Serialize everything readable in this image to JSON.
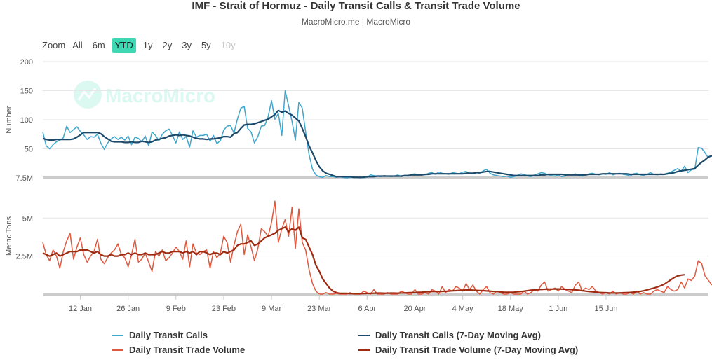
{
  "title": "IMF - Strait of Hormuz - Daily Transit Calls & Transit Trade Volume",
  "subtitle": "MacroMicro.me | MacroMicro",
  "watermark": "MacroMicro",
  "zoom": {
    "label": "Zoom",
    "buttons": [
      {
        "label": "All",
        "state": "normal"
      },
      {
        "label": "6m",
        "state": "normal"
      },
      {
        "label": "YTD",
        "state": "active"
      },
      {
        "label": "1y",
        "state": "normal"
      },
      {
        "label": "2y",
        "state": "normal"
      },
      {
        "label": "3y",
        "state": "normal"
      },
      {
        "label": "5y",
        "state": "normal"
      },
      {
        "label": "10y",
        "state": "disabled"
      }
    ]
  },
  "colors": {
    "calls": "#3fa6cd",
    "calls_ma": "#1c4a6a",
    "volume": "#e0593f",
    "volume_ma": "#9e2a10",
    "grid": "#e6e6e6",
    "watermark": "#3ed9b4"
  },
  "chart_data": [
    {
      "type": "line",
      "ylabel": "Number",
      "ylim": [
        0,
        200
      ],
      "yticks": [
        {
          "value": 50,
          "label": "50"
        },
        {
          "value": 100,
          "label": "100"
        },
        {
          "value": 150,
          "label": "150"
        },
        {
          "value": 200,
          "label": "200"
        }
      ],
      "baseline_label": "7.5M",
      "x_start": "2026-01-01",
      "series": [
        {
          "name": "Daily Transit Calls",
          "color_key": "calls",
          "values": [
            79,
            55,
            50,
            57,
            62,
            65,
            69,
            89,
            78,
            83,
            88,
            80,
            74,
            66,
            71,
            70,
            75,
            60,
            49,
            60,
            67,
            71,
            66,
            70,
            65,
            72,
            57,
            70,
            68,
            62,
            72,
            55,
            79,
            73,
            64,
            75,
            81,
            84,
            73,
            60,
            79,
            66,
            71,
            53,
            81,
            70,
            73,
            73,
            75,
            63,
            73,
            59,
            64,
            82,
            89,
            90,
            77,
            101,
            120,
            123,
            85,
            79,
            60,
            71,
            89,
            90,
            105,
            133,
            101,
            111,
            73,
            150,
            124,
            97,
            65,
            130,
            120,
            79,
            40,
            15,
            5,
            2,
            1,
            4,
            2,
            2,
            1,
            2,
            1,
            0,
            1,
            2,
            1,
            0,
            2,
            1,
            5,
            4,
            3,
            2,
            4,
            3,
            2,
            3,
            5,
            2,
            4,
            3,
            6,
            7,
            5,
            6,
            5,
            8,
            9,
            6,
            10,
            8,
            7,
            6,
            9,
            8,
            7,
            10,
            11,
            8,
            7,
            9,
            8,
            12,
            15,
            8,
            5,
            4,
            3,
            2,
            3,
            1,
            2,
            4,
            7,
            6,
            3,
            2,
            5,
            7,
            9,
            8,
            5,
            4,
            3,
            5,
            2,
            3,
            6,
            5,
            7,
            4,
            3,
            5,
            7,
            8,
            6,
            5,
            7,
            6,
            9,
            5,
            7,
            8,
            6,
            5,
            3,
            7,
            8,
            5,
            4,
            6,
            9,
            6,
            5,
            7,
            6,
            8,
            10,
            13,
            16,
            11,
            20,
            9,
            14,
            15,
            52,
            51,
            43,
            34
          ],
          "width": 1.6
        },
        {
          "name": "Daily Transit Calls (7-Day Moving Avg)",
          "color_key": "calls_ma",
          "values": [
            68,
            66,
            65,
            65,
            66,
            66,
            66,
            66,
            66,
            67,
            70,
            74,
            78,
            78,
            78,
            78,
            78,
            76,
            71,
            67,
            63,
            62,
            62,
            62,
            61,
            61,
            62,
            61,
            61,
            63,
            62,
            61,
            62,
            65,
            66,
            68,
            69,
            72,
            73,
            74,
            73,
            74,
            73,
            72,
            70,
            68,
            67,
            67,
            66,
            67,
            67,
            68,
            69,
            71,
            71,
            70,
            76,
            78,
            85,
            91,
            92,
            92,
            93,
            95,
            97,
            99,
            101,
            105,
            109,
            116,
            113,
            115,
            111,
            108,
            103,
            98,
            85,
            71,
            55,
            43,
            30,
            19,
            12,
            8,
            6,
            4,
            2,
            2,
            2,
            2,
            2,
            1,
            1,
            1,
            1,
            2,
            2,
            2,
            3,
            3,
            3,
            3,
            3,
            3,
            3,
            3,
            4,
            4,
            5,
            5,
            5,
            5,
            6,
            6,
            7,
            7,
            7,
            7,
            7,
            7,
            7,
            7,
            7,
            7,
            8,
            8,
            8,
            9,
            9,
            10,
            11,
            11,
            10,
            9,
            8,
            7,
            6,
            5,
            4,
            4,
            4,
            4,
            4,
            4,
            4,
            4,
            5,
            5,
            6,
            6,
            6,
            6,
            6,
            5,
            5,
            5,
            5,
            5,
            5,
            5,
            6,
            6,
            6,
            6,
            7,
            7,
            7,
            7,
            7,
            7,
            7,
            7,
            6,
            6,
            6,
            6,
            6,
            6,
            6,
            6,
            6,
            6,
            6,
            7,
            8,
            9,
            11,
            12,
            13,
            14,
            15,
            16,
            22,
            27,
            31,
            36,
            38,
            40
          ]
        }
      ],
      "legend": "bottom"
    },
    {
      "type": "line",
      "ylabel": "Metric Tons",
      "ylim": [
        0,
        6300000
      ],
      "yticks": [
        {
          "value": 2500000,
          "label": "2.5M"
        },
        {
          "value": 5000000,
          "label": "5M"
        }
      ],
      "x_start": "2026-01-01",
      "x_tick_labels": [
        {
          "label": "12 Jan",
          "day": 11
        },
        {
          "label": "26 Jan",
          "day": 25
        },
        {
          "label": "9 Feb",
          "day": 39
        },
        {
          "label": "23 Feb",
          "day": 53
        },
        {
          "label": "9 Mar",
          "day": 67
        },
        {
          "label": "23 Mar",
          "day": 81
        },
        {
          "label": "6 Apr",
          "day": 95
        },
        {
          "label": "20 Apr",
          "day": 109
        },
        {
          "label": "4 May",
          "day": 123
        },
        {
          "label": "18 May",
          "day": 137
        },
        {
          "label": "1 Jun",
          "day": 151
        },
        {
          "label": "15 Jun",
          "day": 165
        }
      ],
      "series": [
        {
          "name": "Daily Transit Trade Volume",
          "color_key": "volume",
          "values": [
            3400000,
            2600000,
            2200000,
            2900000,
            2500000,
            1700000,
            2800000,
            3500000,
            4000000,
            2300000,
            3100000,
            3700000,
            2600000,
            2100000,
            2500000,
            2800000,
            3600000,
            2300000,
            2000000,
            2400000,
            2700000,
            2900000,
            3300000,
            2600000,
            2400000,
            1800000,
            2600000,
            3600000,
            2100000,
            2300000,
            2700000,
            2100000,
            1500000,
            2800000,
            2500000,
            2900000,
            2200000,
            2400000,
            2700000,
            3100000,
            2800000,
            2300000,
            3500000,
            1800000,
            3300000,
            2700000,
            2600000,
            2800000,
            2900000,
            1700000,
            2800000,
            2400000,
            2700000,
            3800000,
            3400000,
            2100000,
            3200000,
            4100000,
            4600000,
            2600000,
            3900000,
            3100000,
            2200000,
            3000000,
            4300000,
            4100000,
            3800000,
            4700000,
            6100000,
            3400000,
            4300000,
            4900000,
            3800000,
            5700000,
            3000000,
            5600000,
            3400000,
            2900000,
            1600000,
            700000,
            200000,
            0,
            0,
            100000,
            0,
            0,
            50000,
            0,
            0,
            0,
            100000,
            0,
            0,
            0,
            200000,
            100000,
            0,
            300000,
            0,
            0,
            0,
            100000,
            0,
            0,
            0,
            200000,
            100000,
            0,
            0,
            300000,
            0,
            0,
            100000,
            0,
            300000,
            200000,
            0,
            500000,
            100000,
            300000,
            200000,
            500000,
            400000,
            200000,
            700000,
            300000,
            600000,
            200000,
            0,
            300000,
            500000,
            100000,
            0,
            200000,
            100000,
            0,
            0,
            100000,
            0,
            0,
            0,
            200000,
            0,
            100000,
            300000,
            200000,
            600000,
            800000,
            200000,
            300000,
            400000,
            200000,
            500000,
            300000,
            200000,
            100000,
            600000,
            800000,
            200000,
            400000,
            300000,
            500000,
            200000,
            100000,
            0,
            100000,
            0,
            200000,
            0,
            100000,
            0,
            0,
            100000,
            0,
            200000,
            0,
            100000,
            0,
            0,
            200000,
            300000,
            200000,
            100000,
            500000,
            300000,
            200000,
            300000,
            800000,
            400000,
            1000000,
            900000,
            1200000,
            2200000,
            2000000,
            1200000,
            900000,
            600000
          ],
          "width": 1.6
        },
        {
          "name": "Daily Transit Trade Volume (7-Day Moving Avg)",
          "color_key": "volume_ma",
          "values": [
            2700000,
            2600000,
            2500000,
            2600000,
            2700000,
            2500000,
            2600000,
            2700000,
            2800000,
            2800000,
            2800000,
            2900000,
            2900000,
            2900000,
            2800000,
            2700000,
            2800000,
            2600000,
            2500000,
            2500000,
            2600000,
            2500000,
            2500000,
            2600000,
            2600000,
            2700000,
            2600000,
            2700000,
            2600000,
            2600000,
            2700000,
            2600000,
            2600000,
            2600000,
            2700000,
            2800000,
            2700000,
            2700000,
            2800000,
            2800000,
            2800000,
            2700000,
            2800000,
            2700000,
            2800000,
            2600000,
            2800000,
            2800000,
            2700000,
            2600000,
            2700000,
            2700000,
            2600000,
            2800000,
            2700000,
            2800000,
            2900000,
            3200000,
            3300000,
            3300000,
            3400000,
            3500000,
            3200000,
            3300000,
            3500000,
            3700000,
            3800000,
            3900000,
            4000000,
            4200000,
            4300000,
            4400000,
            4100000,
            4300000,
            4200000,
            4400000,
            3700000,
            3600000,
            3100000,
            2600000,
            1900000,
            1500000,
            1000000,
            700000,
            400000,
            200000,
            100000,
            50000,
            50000,
            50000,
            30000,
            30000,
            30000,
            30000,
            40000,
            40000,
            50000,
            60000,
            70000,
            70000,
            60000,
            60000,
            70000,
            70000,
            60000,
            80000,
            80000,
            90000,
            100000,
            100000,
            120000,
            130000,
            150000,
            150000,
            170000,
            180000,
            170000,
            180000,
            190000,
            200000,
            220000,
            230000,
            250000,
            260000,
            270000,
            280000,
            260000,
            250000,
            240000,
            230000,
            210000,
            200000,
            180000,
            170000,
            150000,
            130000,
            120000,
            120000,
            130000,
            150000,
            170000,
            200000,
            230000,
            260000,
            280000,
            300000,
            310000,
            320000,
            330000,
            330000,
            340000,
            340000,
            330000,
            320000,
            310000,
            300000,
            280000,
            260000,
            230000,
            200000,
            170000,
            150000,
            130000,
            110000,
            100000,
            90000,
            80000,
            80000,
            80000,
            80000,
            90000,
            100000,
            110000,
            130000,
            150000,
            180000,
            220000,
            280000,
            340000,
            400000,
            470000,
            550000,
            650000,
            800000,
            950000,
            1100000,
            1200000,
            1250000,
            1280000
          ]
        }
      ],
      "legend": "bottom"
    }
  ]
}
